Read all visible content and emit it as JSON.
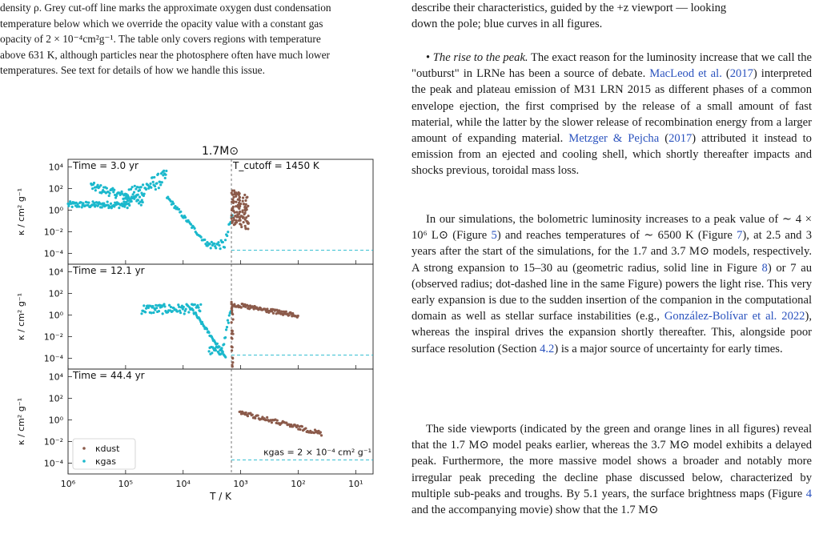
{
  "caption": {
    "lines": [
      "density ρ. Grey cut-off line marks the approximate oxygen dust condensation",
      "temperature below which we override the opacity value with a constant gas",
      "opacity of 2 × 10⁻⁴cm²g⁻¹. The table only covers regions with temperature",
      "above 631 K, although particles near the photosphere often have much lower",
      "temperatures. See text for details of how we handle this issue."
    ]
  },
  "right_column": {
    "intro_lines": [
      "describe their characteristics, guided by the +z viewport — looking",
      "down the pole; blue curves in all figures."
    ],
    "bullet_title": "The rise to the peak.",
    "bullet_text_before": " The exact reason for the luminosity increase that we call the \"outburst\" in LRNe has been a source of debate. ",
    "cite_macleod": "MacLeod et al.",
    "cite_macleod_year": "2017",
    "bullet_text_mid": " interpreted the peak and plateau emission of M31 LRN 2015 as different phases of a common envelope ejection, the first comprised by the release of a small amount of fast material, while the latter by the slower release of recombination energy from a larger amount of expanding material. ",
    "cite_metzger": "Metzger & Pejcha",
    "cite_metzger_year": "2017",
    "bullet_text_end": " attributed it instead to emission from an ejected and cooling shell, which shortly thereafter impacts and shocks previous, toroidal mass loss.",
    "para2_a": "In our simulations, the bolometric luminosity increases to a peak value of ∼ 4 × 10⁶ L⊙ (Figure ",
    "fig5": "5",
    "para2_b": ") and reaches temperatures of ∼ 6500 K (Figure ",
    "fig7": "7",
    "para2_c": "), at 2.5 and 3 years after the start of the simulations, for the 1.7 and 3.7 M⊙ models, respectively. A strong expansion to 15–30 au (geometric radius, solid line in Figure ",
    "fig8": "8",
    "para2_d": ") or 7 au (observed radius; dot-dashed line in the same Figure) powers the light rise. This very early expansion is due to the sudden insertion of the companion in the computational domain as well as stellar surface instabilities (e.g., ",
    "cite_gonzalez": "González-Bolívar et al. 2022",
    "para2_e": "), whereas the inspiral drives the expansion shortly thereafter. This, alongside poor surface resolution (Section ",
    "sec42": "4.2",
    "para2_f": ") is a major source of uncertainty for early times.",
    "para3_a": "The side viewports (indicated by the green and orange lines in all figures) reveal that the 1.7 M⊙ model peaks earlier, whereas the 3.7 M⊙ model exhibits a delayed peak. Furthermore, the more massive model shows a broader and notably more irregular peak preceding the decline phase discussed below, characterized by multiple sub-peaks and troughs. By 5.1 years, the surface brightness maps (Figure ",
    "fig4": "4",
    "para3_b": " and the accompanying movie) show that the 1.7 M⊙"
  },
  "chart_data": {
    "type": "scatter",
    "title": "1.7M⊙",
    "xlabel": "T / K",
    "ylabel": "κ / cm² g⁻¹",
    "x_scale": "log",
    "x_reversed": true,
    "xlim": [
      1000000,
      5
    ],
    "ylim": [
      1e-05,
      50000
    ],
    "x_ticks": [
      "10⁶",
      "10⁵",
      "10⁴",
      "10³",
      "10²",
      "10¹"
    ],
    "y_ticks": [
      "10⁴",
      "10²",
      "10⁰",
      "10⁻²",
      "10⁻⁴"
    ],
    "cutoff_label": "T_cutoff = 1450 K",
    "cutoff_T": 1450,
    "gas_floor_label": "κgas = 2 × 10⁻⁴ cm² g⁻¹",
    "gas_floor_value": 0.0002,
    "legend": [
      "κdust",
      "κgas"
    ],
    "colors": {
      "dust": "#8b5a4a",
      "gas": "#1bb8cc",
      "cutoff": "#555555"
    },
    "panels": [
      {
        "time_label": "Time = 3.0 yr"
      },
      {
        "time_label": "Time = 12.1 yr"
      },
      {
        "time_label": "Time = 44.4 yr"
      }
    ]
  }
}
